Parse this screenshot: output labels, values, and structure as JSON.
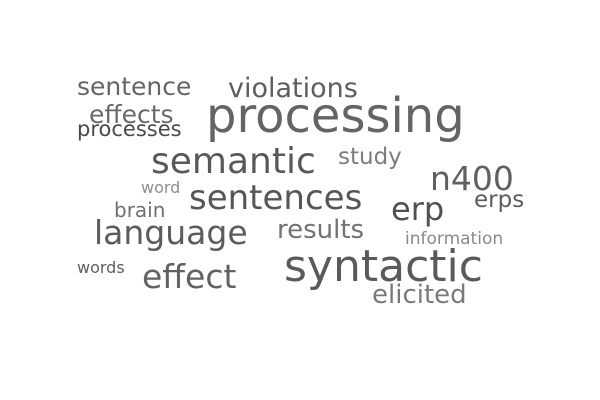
{
  "words": {
    "processing": {
      "text": "processing",
      "color": "#646464"
    },
    "syntactic": {
      "text": "syntactic",
      "color": "#5a5a5a"
    },
    "semantic": {
      "text": "semantic",
      "color": "#595959"
    },
    "sentences": {
      "text": "sentences",
      "color": "#565656"
    },
    "language": {
      "text": "language",
      "color": "#5c5c5c"
    },
    "effect": {
      "text": "effect",
      "color": "#626262"
    },
    "n400": {
      "text": "n400",
      "color": "#606060"
    },
    "erp": {
      "text": "erp",
      "color": "#505050"
    },
    "violations": {
      "text": "violations",
      "color": "#5e5e5e"
    },
    "sentence": {
      "text": "sentence",
      "color": "#666666"
    },
    "results": {
      "text": "results",
      "color": "#737373"
    },
    "elicited": {
      "text": "elicited",
      "color": "#7a7a7a"
    },
    "effects": {
      "text": "effects",
      "color": "#6a6a6a"
    },
    "study": {
      "text": "study",
      "color": "#7d7d7d"
    },
    "erps": {
      "text": "erps",
      "color": "#5c5c5c"
    },
    "processes": {
      "text": "processes",
      "color": "#4a4a4a"
    },
    "brain": {
      "text": "brain",
      "color": "#6f6f6f"
    },
    "information": {
      "text": "information",
      "color": "#8a8a8a"
    },
    "word": {
      "text": "word",
      "color": "#8f8f8f"
    },
    "words": {
      "text": "words",
      "color": "#5f5f5f"
    }
  }
}
